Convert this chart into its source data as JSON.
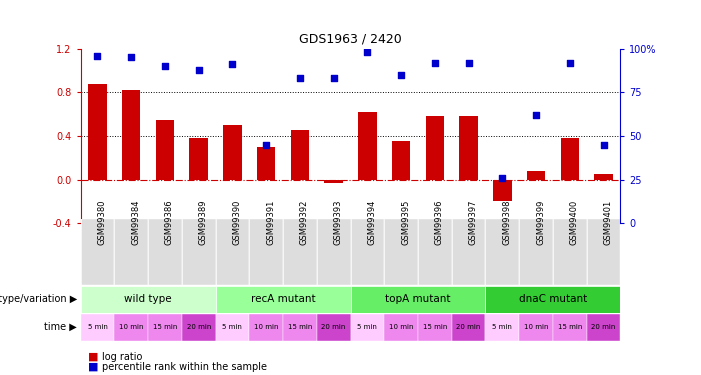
{
  "title": "GDS1963 / 2420",
  "samples": [
    "GSM99380",
    "GSM99384",
    "GSM99386",
    "GSM99389",
    "GSM99390",
    "GSM99391",
    "GSM99392",
    "GSM99393",
    "GSM99394",
    "GSM99395",
    "GSM99396",
    "GSM99397",
    "GSM99398",
    "GSM99399",
    "GSM99400",
    "GSM99401"
  ],
  "log_ratio": [
    0.88,
    0.82,
    0.55,
    0.38,
    0.5,
    0.3,
    0.45,
    -0.03,
    0.62,
    0.35,
    0.58,
    0.58,
    -0.2,
    0.08,
    0.38,
    0.05
  ],
  "percentile": [
    96,
    95,
    90,
    88,
    91,
    45,
    83,
    83,
    98,
    85,
    92,
    92,
    26,
    62,
    92,
    45
  ],
  "bar_color": "#cc0000",
  "dot_color": "#0000cc",
  "groups": [
    {
      "label": "wild type",
      "start": 0,
      "end": 3,
      "color": "#ccffcc"
    },
    {
      "label": "recA mutant",
      "start": 4,
      "end": 7,
      "color": "#99ff99"
    },
    {
      "label": "topA mutant",
      "start": 8,
      "end": 11,
      "color": "#66ee66"
    },
    {
      "label": "dnaC mutant",
      "start": 12,
      "end": 15,
      "color": "#33cc33"
    }
  ],
  "time_labels": [
    "5 min",
    "10 min",
    "15 min",
    "20 min",
    "5 min",
    "10 min",
    "15 min",
    "20 min",
    "5 min",
    "10 min",
    "15 min",
    "20 min",
    "5 min",
    "10 min",
    "15 min",
    "20 min"
  ],
  "time_colors": [
    "#ffccff",
    "#ee88ee",
    "#ee88ee",
    "#cc44cc",
    "#ffccff",
    "#ee88ee",
    "#ee88ee",
    "#cc44cc",
    "#ffccff",
    "#ee88ee",
    "#ee88ee",
    "#cc44cc",
    "#ffccff",
    "#ee88ee",
    "#ee88ee",
    "#cc44cc"
  ],
  "ylim_left": [
    -0.4,
    1.2
  ],
  "ylim_right": [
    0,
    100
  ],
  "yticks_left": [
    -0.4,
    0.0,
    0.4,
    0.8,
    1.2
  ],
  "yticks_right": [
    0,
    25,
    50,
    75,
    100
  ],
  "yticklabels_right": [
    "0",
    "25",
    "50",
    "75",
    "100%"
  ],
  "hlines": [
    0.4,
    0.8
  ],
  "zero_line_color": "#cc0000",
  "hline_color": "#000000",
  "xlabel_bg": "#cccccc",
  "background_color": "#ffffff"
}
